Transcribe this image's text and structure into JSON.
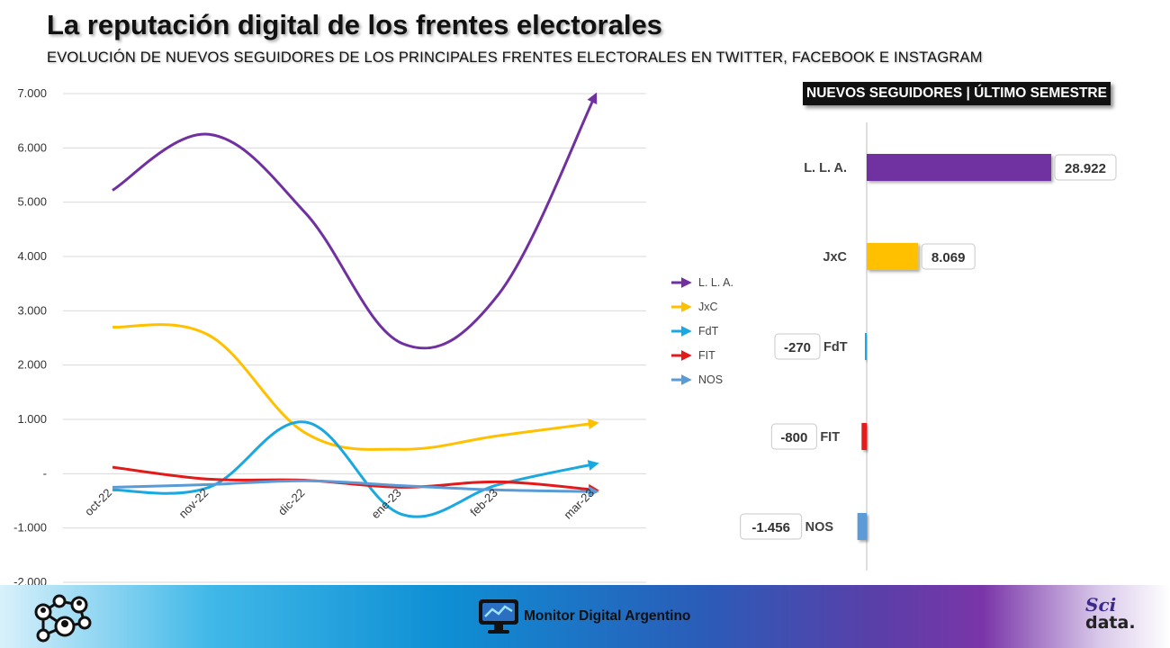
{
  "header": {
    "title": "La reputación digital de los frentes electorales",
    "subtitle": "EVOLUCIÓN DE NUEVOS SEGUIDORES DE LOS PRINCIPALES FRENTES ELECTORALES EN TWITTER, FACEBOOK E INSTAGRAM"
  },
  "chart_data": [
    {
      "type": "line",
      "title": "",
      "xlabel": "",
      "ylabel": "",
      "x": [
        "oct-22",
        "nov-22",
        "dic-22",
        "ene-23",
        "feb-23",
        "mar-23"
      ],
      "ylim": [
        -2000,
        7000
      ],
      "y_ticks": [
        7000,
        6000,
        5000,
        4000,
        3000,
        2000,
        1000,
        0,
        -1000,
        -2000
      ],
      "y_tick_labels": [
        "7.000",
        "6.000",
        "5.000",
        "4.000",
        "3.000",
        "2.000",
        "1.000",
        "-",
        "-1.000",
        "-2.000"
      ],
      "grid": true,
      "legend": "right",
      "series": [
        {
          "name": "L. L. A.",
          "color": "#7030a0",
          "values": [
            5220,
            6250,
            4800,
            2400,
            3300,
            6950
          ]
        },
        {
          "name": "JxC",
          "color": "#ffc000",
          "values": [
            2700,
            2550,
            750,
            450,
            700,
            930
          ]
        },
        {
          "name": "FdT",
          "color": "#1aa8e0",
          "values": [
            -300,
            -250,
            950,
            -750,
            -200,
            180
          ]
        },
        {
          "name": "FIT",
          "color": "#e31a1a",
          "values": [
            120,
            -100,
            -120,
            -250,
            -150,
            -300
          ]
        },
        {
          "name": "NOS",
          "color": "#5b9bd5",
          "values": [
            -250,
            -200,
            -130,
            -220,
            -300,
            -330
          ]
        }
      ]
    },
    {
      "type": "bar",
      "title": "NUEVOS SEGUIDORES | ÚLTIMO SEMESTRE",
      "orientation": "horizontal",
      "categories": [
        "L. L. A.",
        "JxC",
        "FdT",
        "FIT",
        "NOS"
      ],
      "values": [
        28922,
        8069,
        -270,
        -800,
        -1456
      ],
      "value_labels": [
        "28.922",
        "8.069",
        "-270",
        "-800",
        "-1.456"
      ],
      "colors": [
        "#7030a0",
        "#ffc000",
        "#1aa8e0",
        "#e31a1a",
        "#5b9bd5"
      ]
    }
  ],
  "footer": {
    "brand": "Monitor Digital Argentino",
    "logo_line1": "Sci",
    "logo_line2": "data."
  },
  "icons": [
    "network-people-icon",
    "monitor-chart-icon"
  ]
}
